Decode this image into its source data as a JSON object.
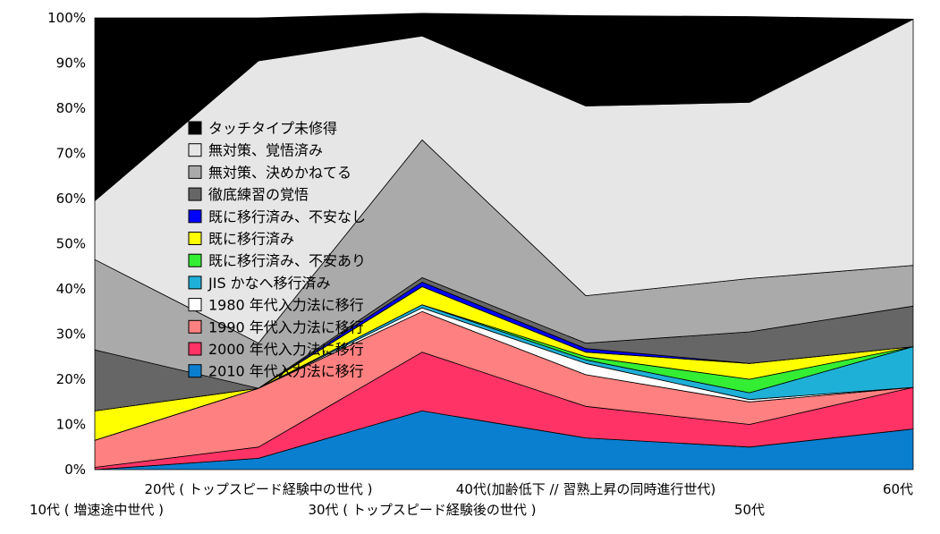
{
  "chart_data": {
    "type": "area",
    "stacked": true,
    "percent": true,
    "title": "",
    "xlabel": "",
    "ylabel": "",
    "ylim": [
      0,
      100
    ],
    "y_ticks": [
      "0%",
      "10%",
      "20%",
      "30%",
      "40%",
      "50%",
      "60%",
      "70%",
      "80%",
      "90%",
      "100%"
    ],
    "categories": [
      "10代 ( 増速途中世代 )",
      "20代 ( トップスピード経験中の世代 )",
      "30代 ( トップスピード経験後の世代 )",
      "40代(加齢低下 // 習熟上昇の同時進行世代)",
      "50代",
      "60代"
    ],
    "legend_position": "center-left (overlaid on plot)",
    "series": [
      {
        "name": "2010 年代入力法に移行",
        "color": "#0a7fd0",
        "values": [
          0,
          2.5,
          13,
          7,
          5,
          9
        ]
      },
      {
        "name": "2000 年代入力法に移行",
        "color": "#ff3366",
        "values": [
          0.5,
          2.5,
          13,
          7,
          5,
          9.2
        ]
      },
      {
        "name": "1990 年代入力法に移行",
        "color": "#ff8080",
        "values": [
          6,
          13,
          9,
          7,
          5,
          0
        ]
      },
      {
        "name": "1980 年代入力法に移行",
        "color": "#ffffff",
        "values": [
          0,
          0,
          0.8,
          2.5,
          0.5,
          0
        ]
      },
      {
        "name": "JIS かなへ移行済み",
        "color": "#1fb0d8",
        "values": [
          0,
          0,
          0.7,
          0.8,
          1.5,
          9
        ]
      },
      {
        "name": "既に移行済み、不安あり",
        "color": "#33ee33",
        "values": [
          0,
          0,
          0,
          0.7,
          3,
          0
        ]
      },
      {
        "name": "既に移行済み",
        "color": "#ffff00",
        "values": [
          6.5,
          0,
          4,
          1,
          3.5,
          0
        ]
      },
      {
        "name": "既に移行済み、不安なし",
        "color": "#0000ff",
        "values": [
          0,
          0,
          1,
          0.8,
          0,
          0
        ]
      },
      {
        "name": "徹底練習の覚悟",
        "color": "#666666",
        "values": [
          13.5,
          0,
          1,
          1.2,
          7,
          9
        ]
      },
      {
        "name": "無対策、決めかねてる",
        "color": "#aaaaaa",
        "values": [
          20,
          10,
          30.5,
          10.5,
          11.8,
          9
        ]
      },
      {
        "name": "無対策、覚悟済み",
        "color": "#e6e6e6",
        "values": [
          13,
          62.5,
          23,
          42,
          39,
          54.5
        ]
      },
      {
        "name": "タッチタイプ未修得",
        "color": "#000000",
        "values": [
          40.5,
          9.5,
          5,
          20,
          19,
          0
        ]
      }
    ]
  }
}
